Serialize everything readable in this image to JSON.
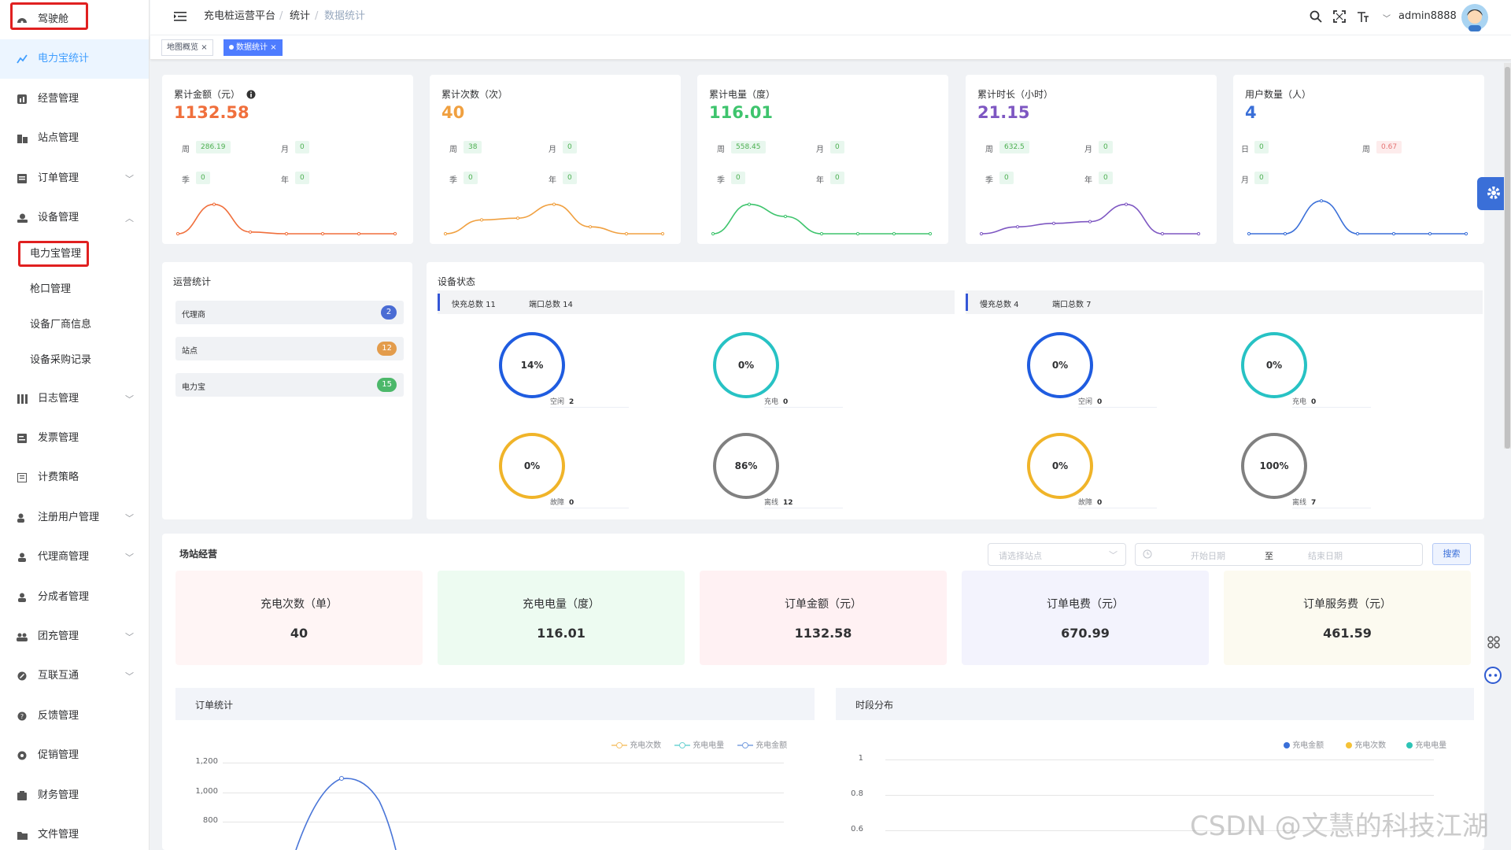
{
  "sidebar": {
    "items": [
      {
        "label": "驾驶舱",
        "icon": "dashboard-icon"
      },
      {
        "label": "电力宝统计",
        "icon": "chart-icon"
      },
      {
        "label": "经营管理",
        "icon": "business-icon"
      },
      {
        "label": "站点管理",
        "icon": "building-icon"
      },
      {
        "label": "订单管理",
        "icon": "order-icon",
        "arrow": "﹀"
      },
      {
        "label": "设备管理",
        "icon": "device-icon",
        "arrow": "︿"
      },
      {
        "label": "电力宝管理"
      },
      {
        "label": "枪口管理"
      },
      {
        "label": "设备厂商信息"
      },
      {
        "label": "设备采购记录"
      },
      {
        "label": "日志管理",
        "icon": "log-icon",
        "arrow": "﹀"
      },
      {
        "label": "发票管理",
        "icon": "invoice-icon"
      },
      {
        "label": "计费策略",
        "icon": "billing-icon"
      },
      {
        "label": "注册用户管理",
        "icon": "user-icon",
        "arrow": "﹀"
      },
      {
        "label": "代理商管理",
        "icon": "agent-icon",
        "arrow": "﹀"
      },
      {
        "label": "分成者管理",
        "icon": "person-icon"
      },
      {
        "label": "团充管理",
        "icon": "group-icon",
        "arrow": "﹀"
      },
      {
        "label": "互联互通",
        "icon": "link-icon",
        "arrow": "﹀"
      },
      {
        "label": "反馈管理",
        "icon": "question-icon"
      },
      {
        "label": "促销管理",
        "icon": "promo-icon"
      },
      {
        "label": "财务管理",
        "icon": "finance-icon"
      },
      {
        "label": "文件管理",
        "icon": "folder-icon"
      }
    ]
  },
  "navbar": {
    "crumb1": "充电桩运营平台",
    "sep1": "/",
    "crumb2": "统计",
    "sep2": "/",
    "crumb3": "数据统计",
    "username": "admin8888"
  },
  "tags": {
    "tag1": "地图概览",
    "tag2": "数据统计",
    "close": "×"
  },
  "stats": [
    {
      "title": "累计金额（元）",
      "value": "1132.58",
      "color": "#f06f3c",
      "p": [
        [
          "周",
          "286.19"
        ],
        [
          "月",
          "0"
        ],
        [
          "季",
          "0"
        ],
        [
          "年",
          "0"
        ]
      ],
      "curve": [
        0,
        0.85,
        0.05,
        0,
        0,
        0,
        0
      ]
    },
    {
      "title": "累计次数（次）",
      "value": "40",
      "color": "#f0a040",
      "p": [
        [
          "周",
          "38"
        ],
        [
          "月",
          "0"
        ],
        [
          "季",
          "0"
        ],
        [
          "年",
          "0"
        ]
      ],
      "curve": [
        0,
        0.4,
        0.45,
        0.85,
        0.2,
        0,
        0
      ]
    },
    {
      "title": "累计电量（度）",
      "value": "116.01",
      "color": "#3ec46d",
      "p": [
        [
          "周",
          "558.45"
        ],
        [
          "月",
          "0"
        ],
        [
          "季",
          "0"
        ],
        [
          "年",
          "0"
        ]
      ],
      "curve": [
        0,
        0.85,
        0.5,
        0,
        0,
        0,
        0
      ]
    },
    {
      "title": "累计时长（小时）",
      "value": "21.15",
      "color": "#7e57c2",
      "p": [
        [
          "周",
          "632.5"
        ],
        [
          "月",
          "0"
        ],
        [
          "季",
          "0"
        ],
        [
          "年",
          "0"
        ]
      ],
      "curve": [
        0,
        0.2,
        0.3,
        0.35,
        0.85,
        0,
        0
      ]
    },
    {
      "title": "用户数量（人）",
      "value": "4",
      "color": "#3a6fd8",
      "p": [
        [
          "日",
          "0"
        ],
        [
          "周",
          "0.67"
        ],
        [
          "月",
          "0"
        ]
      ],
      "curve": [
        0,
        0,
        0.95,
        0,
        0,
        0,
        0
      ]
    }
  ],
  "ops": {
    "title": "运营统计",
    "rows": [
      {
        "label": "代理商",
        "count": "2",
        "color": "#4a6cd4"
      },
      {
        "label": "站点",
        "count": "12",
        "color": "#e39c4c"
      },
      {
        "label": "电力宝",
        "count": "15",
        "color": "#4cb86a"
      }
    ]
  },
  "device": {
    "title": "设备状态",
    "fast_label": "快充总数 11",
    "fast_port": "端口总数 14",
    "slow_label": "慢充总数 4",
    "slow_port": "端口总数 7",
    "donuts": [
      {
        "pct": "14%",
        "label": "空闲",
        "count": "2",
        "color": "#1f5ce0"
      },
      {
        "pct": "0%",
        "label": "充电",
        "count": "0",
        "color": "#27c2c4"
      },
      {
        "pct": "0%",
        "label": "空闲",
        "count": "0",
        "color": "#1f5ce0"
      },
      {
        "pct": "0%",
        "label": "充电",
        "count": "0",
        "color": "#27c2c4"
      },
      {
        "pct": "0%",
        "label": "故障",
        "count": "0",
        "color": "#f0b429"
      },
      {
        "pct": "86%",
        "label": "离线",
        "count": "12",
        "color": "#808080"
      },
      {
        "pct": "0%",
        "label": "故障",
        "count": "0",
        "color": "#f0b429"
      },
      {
        "pct": "100%",
        "label": "离线",
        "count": "7",
        "color": "#808080"
      }
    ]
  },
  "station": {
    "title": "场站经营",
    "select_placeholder": "请选择站点",
    "start_placeholder": "开始日期",
    "range_sep": "至",
    "end_placeholder": "结束日期",
    "search": "搜索",
    "metrics": [
      {
        "title": "充电次数（单）",
        "value": "40",
        "bg": "#fff5f5"
      },
      {
        "title": "充电电量（度）",
        "value": "116.01",
        "bg": "#edfbf1"
      },
      {
        "title": "订单金额（元）",
        "value": "1132.58",
        "bg": "#fff1f3"
      },
      {
        "title": "订单电费（元）",
        "value": "670.99",
        "bg": "#f3f3fd"
      },
      {
        "title": "订单服务费（元）",
        "value": "461.59",
        "bg": "#fcfaf0"
      }
    ]
  },
  "order_chart": {
    "title": "订单统计",
    "legend": [
      "充电次数",
      "充电电量",
      "充电金额"
    ],
    "legend_colors": [
      "#f5c26b",
      "#6fd3d3",
      "#7aa0e0"
    ],
    "yticks": [
      "1,200",
      "1,000",
      "800"
    ]
  },
  "time_chart": {
    "title": "时段分布",
    "legend": [
      "充电金额",
      "充电次数",
      "充电电量"
    ],
    "legend_colors": [
      "#3a6fd8",
      "#f5c236",
      "#2ec4b6"
    ],
    "yticks": [
      "1",
      "0.8",
      "0.6"
    ]
  },
  "watermark": "CSDN @文慧的科技江湖"
}
